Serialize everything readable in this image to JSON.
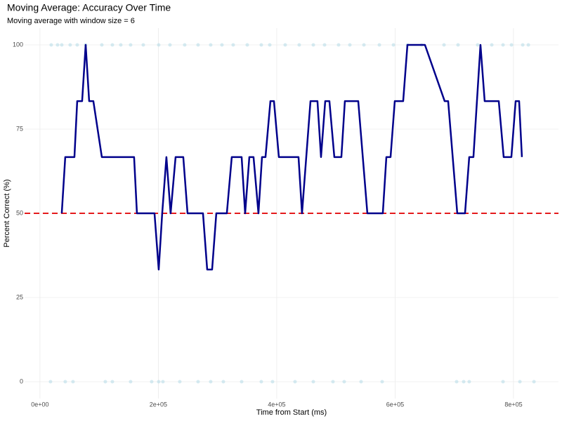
{
  "chart_data": {
    "type": "line",
    "title": "Moving Average: Accuracy Over Time",
    "subtitle": "Moving average with window size = 6",
    "xlabel": "Time from Start (ms)",
    "ylabel": "Percent Correct (%)",
    "xlim": [
      -26000,
      876000
    ],
    "ylim": [
      -5,
      105
    ],
    "xticks": [
      {
        "value": 0,
        "label": "0e+00"
      },
      {
        "value": 200000,
        "label": "2e+05"
      },
      {
        "value": 400000,
        "label": "4e+05"
      },
      {
        "value": 600000,
        "label": "6e+05"
      },
      {
        "value": 800000,
        "label": "8e+05"
      }
    ],
    "yticks": [
      0,
      25,
      50,
      75,
      100
    ],
    "grid": true,
    "line": {
      "color": "#00008b",
      "x": [
        36800,
        42700,
        58200,
        62900,
        71200,
        77200,
        83100,
        90200,
        104500,
        159000,
        163800,
        193500,
        200600,
        206500,
        213600,
        220700,
        229100,
        242100,
        249300,
        275400,
        282500,
        290800,
        297900,
        315700,
        324000,
        340700,
        346600,
        353700,
        360800,
        369100,
        375100,
        381000,
        389300,
        395300,
        403600,
        436800,
        442700,
        457000,
        468800,
        474800,
        481900,
        489000,
        497300,
        509200,
        515100,
        537700,
        553100,
        579200,
        585200,
        592300,
        599400,
        613600,
        620800,
        650400,
        683700,
        689600,
        705000,
        718100,
        725200,
        732300,
        744200,
        751300,
        775100,
        783400,
        796400,
        803600,
        809500,
        814200
      ],
      "values": [
        50,
        66.7,
        66.7,
        83.3,
        83.3,
        100,
        83.3,
        83.3,
        66.7,
        66.7,
        50,
        50,
        33.3,
        50,
        66.7,
        50,
        66.7,
        66.7,
        50,
        50,
        33.3,
        33.3,
        50,
        50,
        66.7,
        66.7,
        50,
        66.7,
        66.7,
        50,
        66.7,
        66.7,
        83.3,
        83.3,
        66.7,
        66.7,
        50,
        83.3,
        83.3,
        66.7,
        83.3,
        83.3,
        66.7,
        66.7,
        83.3,
        83.3,
        50,
        50,
        66.7,
        66.7,
        83.3,
        83.3,
        100,
        100,
        83.3,
        83.3,
        50,
        50,
        66.7,
        66.7,
        100,
        83.3,
        83.3,
        66.7,
        66.7,
        83.3,
        83.3,
        66.7
      ]
    },
    "points": {
      "color": "#add8e6",
      "x": [
        19000,
        29700,
        36800,
        51000,
        62900,
        77200,
        104500,
        122300,
        136500,
        153100,
        174500,
        200600,
        219600,
        244500,
        267100,
        288400,
        307400,
        326400,
        350200,
        373900,
        388200,
        414300,
        438000,
        461800,
        480800,
        504500,
        523500,
        547300,
        573400,
        597200,
        620900,
        644600,
        682600,
        706300,
        739500,
        763300,
        782300,
        796600,
        815600,
        825100,
        17800,
        42700,
        55800,
        110400,
        122300,
        153100,
        188700,
        200600,
        207700,
        236200,
        267100,
        288400,
        309800,
        340700,
        373900,
        392900,
        430900,
        461800,
        495000,
        514000,
        542500,
        578100,
        703900,
        715800,
        725200,
        782300,
        810800,
        834600
      ],
      "values": [
        100,
        100,
        100,
        100,
        100,
        100,
        100,
        100,
        100,
        100,
        100,
        100,
        100,
        100,
        100,
        100,
        100,
        100,
        100,
        100,
        100,
        100,
        100,
        100,
        100,
        100,
        100,
        100,
        100,
        100,
        100,
        100,
        100,
        100,
        100,
        100,
        100,
        100,
        100,
        100,
        0,
        0,
        0,
        0,
        0,
        0,
        0,
        0,
        0,
        0,
        0,
        0,
        0,
        0,
        0,
        0,
        0,
        0,
        0,
        0,
        0,
        0,
        0,
        0,
        0,
        0,
        0,
        0
      ]
    },
    "reference_line": {
      "value": 50,
      "color": "#e41a1c"
    }
  }
}
